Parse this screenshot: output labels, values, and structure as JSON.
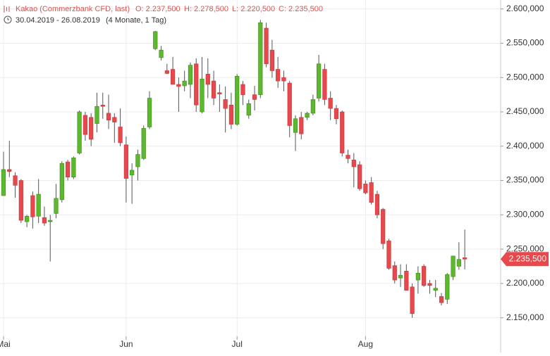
{
  "chart_data": {
    "type": "candlestick",
    "title": "Kakao (Commerzbank CFD, last)",
    "stats": [
      "O: 2.237,500",
      "H: 2.278,500",
      "L: 2.220,500",
      "C: 2.235,500"
    ],
    "date_range": "30.04.2019 - 26.08.2019",
    "period": "(4 Monate, 1 Tag)",
    "up_color": "#5cb82c",
    "down_color": "#e8474c",
    "grid": true,
    "ylim": [
      2123,
      2613
    ],
    "yticks": [
      {
        "value": 2150,
        "label": "2.150,000"
      },
      {
        "value": 2200,
        "label": "2.200,000"
      },
      {
        "value": 2250,
        "label": "2.250,000"
      },
      {
        "value": 2300,
        "label": "2.300,000"
      },
      {
        "value": 2350,
        "label": "2.350,000"
      },
      {
        "value": 2400,
        "label": "2.400,000"
      },
      {
        "value": 2450,
        "label": "2.450,000"
      },
      {
        "value": 2500,
        "label": "2.500,000"
      },
      {
        "value": 2550,
        "label": "2.550,000"
      },
      {
        "value": 2600,
        "label": "2.600,000"
      }
    ],
    "xticks": [
      {
        "value": 0,
        "label": "Mai"
      },
      {
        "value": 21,
        "label": "Jun"
      },
      {
        "value": 40,
        "label": "Jul"
      },
      {
        "value": 62,
        "label": "Aug"
      }
    ],
    "last_price": {
      "value": 2235.5,
      "label": "2.235,500"
    },
    "open": [
      2328,
      2366,
      2357,
      2350,
      2290,
      2328,
      2298,
      2296,
      2290,
      2302,
      2322,
      2377,
      2355,
      2390,
      2445,
      2442,
      2433,
      2460,
      2448,
      2442,
      2428,
      2402,
      2358,
      2370,
      2382,
      2428,
      2542,
      2529,
      2510,
      2512,
      2490,
      2488,
      2490,
      2520,
      2450,
      2505,
      2495,
      2478,
      2468,
      2460,
      2432,
      2490,
      2445,
      2475,
      2475,
      2572,
      2540,
      2512,
      2500,
      2492,
      2420,
      2442,
      2442,
      2448,
      2470,
      2512,
      2470,
      2455,
      2450,
      2387,
      2380,
      2373,
      2345,
      2347,
      2330,
      2308,
      2262,
      2226,
      2208,
      2218,
      2195,
      2205,
      2225,
      2200,
      2190,
      2181,
      2177,
      2210,
      2225,
      2237.5
    ],
    "high": [
      2392,
      2408,
      2362,
      2352,
      2300,
      2334,
      2352,
      2312,
      2300,
      2345,
      2378,
      2380,
      2385,
      2452,
      2450,
      2448,
      2478,
      2478,
      2475,
      2448,
      2455,
      2414,
      2375,
      2395,
      2430,
      2480,
      2568,
      2546,
      2520,
      2530,
      2500,
      2510,
      2522,
      2528,
      2530,
      2528,
      2510,
      2490,
      2487,
      2478,
      2505,
      2495,
      2468,
      2488,
      2584,
      2580,
      2555,
      2530,
      2510,
      2495,
      2445,
      2450,
      2450,
      2475,
      2533,
      2520,
      2480,
      2460,
      2452,
      2395,
      2390,
      2378,
      2350,
      2355,
      2335,
      2310,
      2265,
      2232,
      2228,
      2228,
      2200,
      2225,
      2228,
      2205,
      2205,
      2186,
      2215,
      2238,
      2260,
      2278.5
    ],
    "low": [
      2328,
      2355,
      2325,
      2288,
      2282,
      2280,
      2288,
      2284,
      2232,
      2295,
      2318,
      2350,
      2352,
      2388,
      2408,
      2400,
      2420,
      2440,
      2425,
      2405,
      2400,
      2318,
      2316,
      2350,
      2380,
      2425,
      2540,
      2525,
      2505,
      2490,
      2450,
      2480,
      2470,
      2450,
      2448,
      2470,
      2460,
      2450,
      2420,
      2425,
      2430,
      2460,
      2440,
      2452,
      2470,
      2515,
      2500,
      2485,
      2480,
      2413,
      2393,
      2410,
      2438,
      2445,
      2465,
      2460,
      2438,
      2432,
      2385,
      2375,
      2340,
      2335,
      2330,
      2315,
      2295,
      2250,
      2220,
      2200,
      2195,
      2190,
      2150,
      2185,
      2195,
      2185,
      2180,
      2168,
      2170,
      2205,
      2220,
      2220.5
    ],
    "close": [
      2366,
      2363,
      2343,
      2292,
      2298,
      2297,
      2330,
      2288,
      2292,
      2324,
      2375,
      2355,
      2383,
      2450,
      2417,
      2410,
      2458,
      2458,
      2438,
      2435,
      2405,
      2353,
      2365,
      2388,
      2426,
      2470,
      2567,
      2540,
      2506,
      2490,
      2487,
      2495,
      2518,
      2460,
      2498,
      2490,
      2470,
      2476,
      2455,
      2432,
      2502,
      2475,
      2462,
      2468,
      2580,
      2520,
      2510,
      2495,
      2495,
      2430,
      2440,
      2418,
      2448,
      2468,
      2520,
      2468,
      2455,
      2440,
      2390,
      2382,
      2370,
      2338,
      2332,
      2318,
      2300,
      2258,
      2222,
      2205,
      2212,
      2190,
      2156,
      2215,
      2197,
      2197,
      2193,
      2172,
      2213,
      2240,
      2235,
      2235.5
    ]
  }
}
